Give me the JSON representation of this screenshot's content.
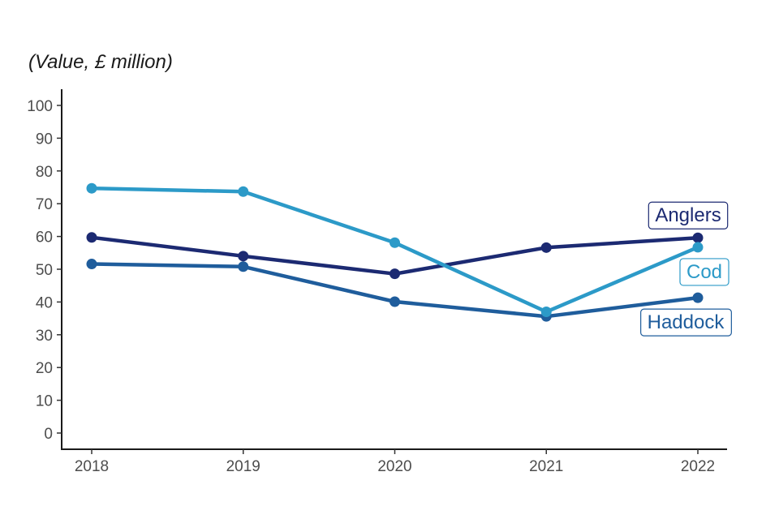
{
  "chart_data": {
    "type": "line",
    "ylabel": "(Value, £ million)",
    "x": [
      "2018",
      "2019",
      "2020",
      "2021",
      "2022"
    ],
    "ylim": [
      0,
      100
    ],
    "yticks": [
      0,
      10,
      20,
      30,
      40,
      50,
      60,
      70,
      80,
      90,
      100
    ],
    "grid": false,
    "legend": "direct labels at line ends",
    "series": [
      {
        "name": "Anglers",
        "values": [
          59.7,
          54.0,
          48.6,
          56.6,
          59.6
        ],
        "color": "#1c2a72"
      },
      {
        "name": "Cod",
        "values": [
          74.7,
          73.7,
          58.1,
          37.0,
          56.7
        ],
        "color": "#2c9ac8"
      },
      {
        "name": "Haddock",
        "values": [
          51.6,
          50.8,
          40.1,
          35.6,
          41.3
        ],
        "color": "#1f5d9c"
      }
    ]
  }
}
